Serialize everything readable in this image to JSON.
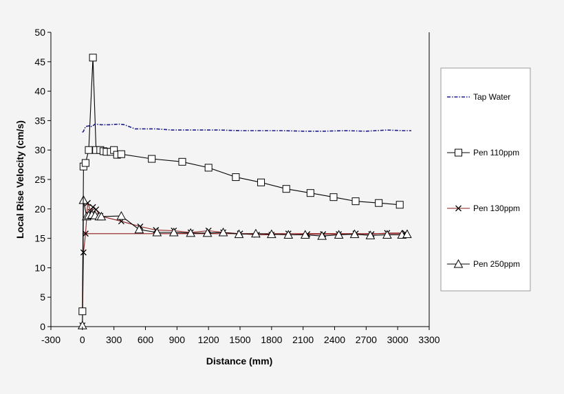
{
  "chart_data": {
    "type": "line",
    "title": "",
    "xlabel": "Distance (mm)",
    "ylabel": "Local Rise Velocity (cm/s)",
    "xlim": [
      -300,
      3300
    ],
    "ylim": [
      0,
      50
    ],
    "xticks": [
      -300,
      0,
      300,
      600,
      900,
      1200,
      1500,
      1800,
      2100,
      2400,
      2700,
      3000,
      3300
    ],
    "yticks": [
      0,
      5,
      10,
      15,
      20,
      25,
      30,
      35,
      40,
      45,
      50
    ],
    "grid": false,
    "legend_position": "right",
    "series": [
      {
        "name": "Tap Water",
        "color": "#1a1a8c",
        "marker": "none",
        "style": "dash-dot",
        "points": [
          [
            0,
            33
          ],
          [
            10,
            33.2
          ],
          [
            30,
            34
          ],
          [
            60,
            34.1
          ],
          [
            90,
            34
          ],
          [
            120,
            34.4
          ],
          [
            180,
            34.3
          ],
          [
            250,
            34.3
          ],
          [
            350,
            34.4
          ],
          [
            400,
            34.3
          ],
          [
            500,
            33.6
          ],
          [
            600,
            33.6
          ],
          [
            700,
            33.6
          ],
          [
            850,
            33.4
          ],
          [
            1000,
            33.4
          ],
          [
            1150,
            33.4
          ],
          [
            1300,
            33.4
          ],
          [
            1500,
            33.3
          ],
          [
            1700,
            33.3
          ],
          [
            1900,
            33.3
          ],
          [
            2100,
            33.2
          ],
          [
            2300,
            33.2
          ],
          [
            2500,
            33.3
          ],
          [
            2700,
            33.2
          ],
          [
            2900,
            33.4
          ],
          [
            3050,
            33.3
          ],
          [
            3130,
            33.3
          ]
        ]
      },
      {
        "name": "Pen 110ppm",
        "color": "#000000",
        "marker": "square",
        "style": "solid",
        "points": [
          [
            0,
            2.6
          ],
          [
            10,
            27.2
          ],
          [
            30,
            27.8
          ],
          [
            60,
            30
          ],
          [
            100,
            45.7
          ],
          [
            130,
            30
          ],
          [
            170,
            30
          ],
          [
            200,
            29.8
          ],
          [
            230,
            29.7
          ],
          [
            270,
            29.7
          ],
          [
            300,
            30
          ],
          [
            330,
            29.2
          ],
          [
            370,
            29.3
          ],
          [
            660,
            28.5
          ],
          [
            950,
            28
          ],
          [
            1200,
            27
          ],
          [
            1460,
            25.4
          ],
          [
            1700,
            24.5
          ],
          [
            1940,
            23.4
          ],
          [
            2170,
            22.7
          ],
          [
            2390,
            22
          ],
          [
            2600,
            21.3
          ],
          [
            2820,
            21
          ],
          [
            3020,
            20.7
          ]
        ]
      },
      {
        "name": "Pen 130ppm",
        "color": "#8b1a1a",
        "marker": "x",
        "style": "solid",
        "points": [
          [
            0,
            0.2
          ],
          [
            10,
            12.6
          ],
          [
            30,
            15.8
          ],
          [
            50,
            21
          ],
          [
            80,
            19.5
          ],
          [
            100,
            20.3
          ],
          [
            130,
            19.9
          ],
          [
            170,
            18.8
          ],
          [
            370,
            17.9
          ],
          [
            550,
            17
          ],
          [
            700,
            16.4
          ],
          [
            870,
            16.3
          ],
          [
            1030,
            16
          ],
          [
            1200,
            16.3
          ],
          [
            1340,
            16
          ],
          [
            1500,
            15.8
          ],
          [
            1660,
            15.6
          ],
          [
            1800,
            15.6
          ],
          [
            1960,
            15.8
          ],
          [
            2140,
            15.7
          ],
          [
            2290,
            15.7
          ],
          [
            2440,
            15.7
          ],
          [
            2600,
            15.8
          ],
          [
            2750,
            15.7
          ],
          [
            2900,
            15.9
          ],
          [
            3070,
            15.9
          ]
        ]
      },
      {
        "name": "Pen 250ppm",
        "color": "#000000",
        "marker": "triangle",
        "style": "solid",
        "points": [
          [
            0,
            0.2
          ],
          [
            10,
            21.5
          ],
          [
            40,
            18.7
          ],
          [
            60,
            18.9
          ],
          [
            90,
            19
          ],
          [
            120,
            18.9
          ],
          [
            160,
            18.7
          ],
          [
            180,
            18.7
          ],
          [
            370,
            18.8
          ],
          [
            540,
            16.5
          ],
          [
            710,
            16
          ],
          [
            870,
            16
          ],
          [
            1030,
            15.9
          ],
          [
            1190,
            15.9
          ],
          [
            1340,
            16
          ],
          [
            1490,
            15.7
          ],
          [
            1650,
            15.8
          ],
          [
            1800,
            15.7
          ],
          [
            1960,
            15.6
          ],
          [
            2120,
            15.6
          ],
          [
            2280,
            15.4
          ],
          [
            2440,
            15.6
          ],
          [
            2590,
            15.7
          ],
          [
            2740,
            15.5
          ],
          [
            2900,
            15.6
          ],
          [
            3040,
            15.6
          ],
          [
            3090,
            15.7
          ]
        ]
      },
      {
        "name": "",
        "color": "#8b1a1a",
        "marker": "none",
        "style": "solid",
        "legend": false,
        "points": [
          [
            0,
            15.8
          ],
          [
            3070,
            15.8
          ]
        ]
      }
    ]
  }
}
